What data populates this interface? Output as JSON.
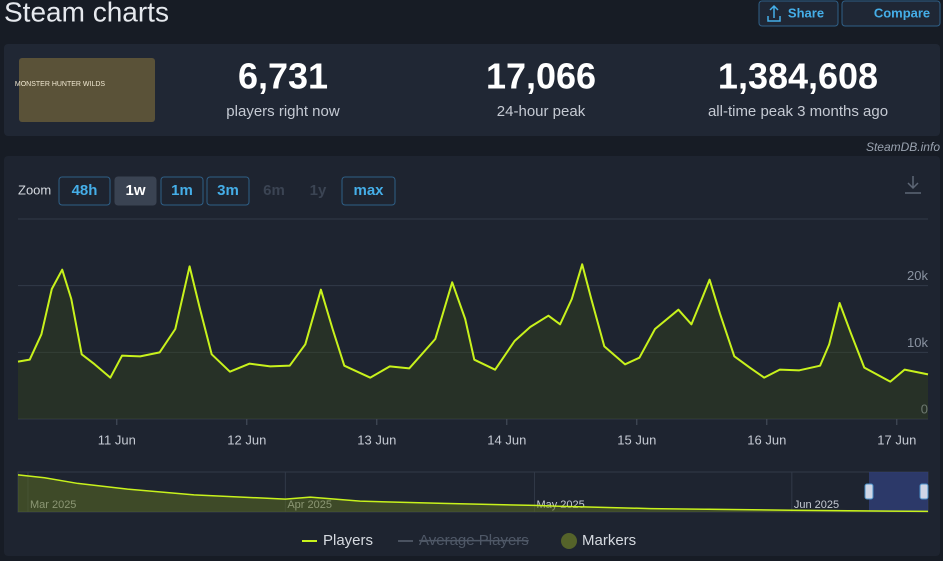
{
  "header": {
    "title": "Steam charts",
    "buttons": [
      "Share",
      "Compare"
    ]
  },
  "logo_text": "MONSTER HUNTER WILDS",
  "stats": [
    {
      "value": "6,731",
      "label": "players right now"
    },
    {
      "value": "17,066",
      "label": "24-hour peak"
    },
    {
      "value": "1,384,608",
      "label": "all-time peak 3 months ago"
    }
  ],
  "credit": "SteamDB.info",
  "zoom": {
    "label": "Zoom",
    "options": [
      "48h",
      "1w",
      "1m",
      "3m",
      "6m",
      "1y",
      "max"
    ]
  },
  "legend_extra": [
    "Average Players",
    "Markers"
  ],
  "chart_data": [
    {
      "type": "line",
      "xlim": [
        10.24,
        17.24
      ],
      "xticks": [
        {
          "value": 11,
          "label": "11 Jun"
        },
        {
          "value": 12,
          "label": "12 Jun"
        },
        {
          "value": 13,
          "label": "13 Jun"
        },
        {
          "value": 14,
          "label": "14 Jun"
        },
        {
          "value": 15,
          "label": "15 Jun"
        },
        {
          "value": 16,
          "label": "16 Jun"
        },
        {
          "value": 17,
          "label": "17 Jun"
        }
      ],
      "ylim": [
        0,
        30000
      ],
      "yticks": [
        0,
        {
          "value": 10000,
          "label": "10k"
        },
        {
          "value": 20000,
          "label": "20k"
        }
      ],
      "grid": true,
      "series": [
        {
          "name": "Players",
          "color": "#c8f21c",
          "x": [
            10.24,
            10.33,
            10.42,
            10.5,
            10.58,
            10.65,
            10.73,
            10.83,
            10.95,
            11.04,
            11.18,
            11.33,
            11.45,
            11.56,
            11.64,
            11.73,
            11.87,
            12.02,
            12.18,
            12.33,
            12.45,
            12.57,
            12.66,
            12.75,
            12.95,
            13.1,
            13.25,
            13.45,
            13.58,
            13.68,
            13.75,
            13.91,
            14.06,
            14.18,
            14.32,
            14.41,
            14.5,
            14.58,
            14.65,
            14.75,
            14.91,
            15.02,
            15.14,
            15.32,
            15.42,
            15.5,
            15.56,
            15.64,
            15.75,
            15.87,
            15.98,
            16.1,
            16.25,
            16.41,
            16.48,
            16.56,
            16.65,
            16.75,
            16.95,
            17.06,
            17.24
          ],
          "values": [
            8600,
            8900,
            12700,
            19500,
            22400,
            18000,
            9700,
            8200,
            6200,
            9500,
            9400,
            10000,
            13500,
            22900,
            16500,
            9700,
            7100,
            8300,
            7900,
            8000,
            11200,
            19400,
            13500,
            8000,
            6200,
            7900,
            7600,
            12000,
            20500,
            15000,
            8900,
            7400,
            11700,
            13800,
            15500,
            14200,
            18000,
            23200,
            18000,
            10900,
            8200,
            9200,
            13500,
            16400,
            14200,
            18000,
            20900,
            15800,
            9400,
            7700,
            6200,
            7400,
            7300,
            8000,
            11200,
            17400,
            12700,
            7700,
            5600,
            7400,
            6700
          ]
        }
      ]
    },
    {
      "type": "area",
      "xlim": [
        58.8,
        168.4
      ],
      "xticks": [
        {
          "value": 60,
          "label": "Mar 2025"
        },
        {
          "value": 91,
          "label": "Apr 2025"
        },
        {
          "value": 121,
          "label": "May 2025"
        },
        {
          "value": 152,
          "label": "Jun 2025"
        }
      ],
      "ylim": [
        0,
        1400000
      ],
      "series": [
        {
          "name": "Players",
          "color": "#c8f21c",
          "x": [
            58.8,
            62,
            66,
            72,
            80,
            91,
            94,
            100,
            110,
            121,
            124,
            135,
            152,
            168.4
          ],
          "values": [
            1300000,
            1200000,
            1000000,
            800000,
            600000,
            450000,
            520000,
            380000,
            300000,
            230000,
            200000,
            120000,
            60000,
            20000
          ]
        }
      ]
    }
  ]
}
